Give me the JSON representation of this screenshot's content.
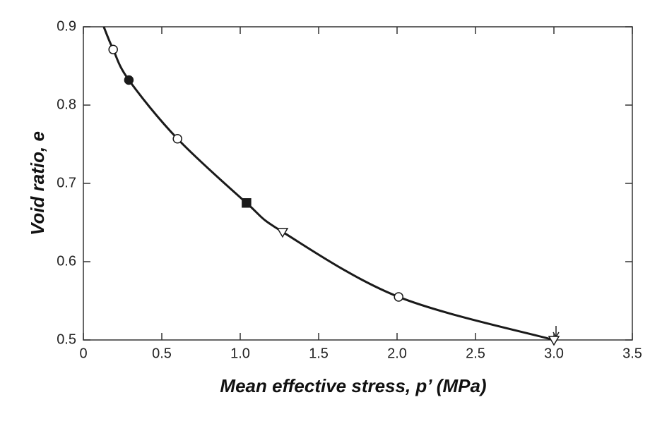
{
  "chart_data": {
    "type": "line",
    "x_label": "Mean effective stress, p’ (MPa)",
    "y_label": "Void ratio, e",
    "xlim": [
      0,
      3.5
    ],
    "xticks": [
      0,
      0.5,
      {
        "value": 1,
        "label": "1.0"
      },
      1.5,
      {
        "value": 2,
        "label": "2.0"
      },
      2.5,
      {
        "value": 3,
        "label": "3.0"
      },
      3.5
    ],
    "ylim": [
      0.5,
      0.9
    ],
    "yticks": [
      0.5,
      0.6,
      0.7,
      0.8,
      0.9
    ],
    "curve": {
      "color": "#1a1a1a",
      "x": [
        0.13,
        0.19,
        0.29,
        0.6,
        1.04,
        1.27,
        2.01,
        3.0
      ],
      "values": [
        0.9,
        0.871,
        0.832,
        0.757,
        0.675,
        0.638,
        0.555,
        0.5
      ]
    },
    "series": [
      {
        "marker": "circle",
        "color": "#ffffff",
        "x": [
          0.19,
          0.6,
          2.01
        ],
        "values": [
          0.871,
          0.757,
          0.555
        ]
      },
      {
        "marker": "circle",
        "color": "#1a1a1a",
        "x": [
          0.29
        ],
        "values": [
          0.832
        ]
      },
      {
        "marker": "square",
        "color": "#1a1a1a",
        "x": [
          1.04
        ],
        "values": [
          0.675
        ]
      },
      {
        "marker": "triangle-down",
        "color": "#ffffff",
        "x": [
          1.27,
          3.0
        ],
        "values": [
          0.638,
          0.5
        ]
      }
    ]
  }
}
